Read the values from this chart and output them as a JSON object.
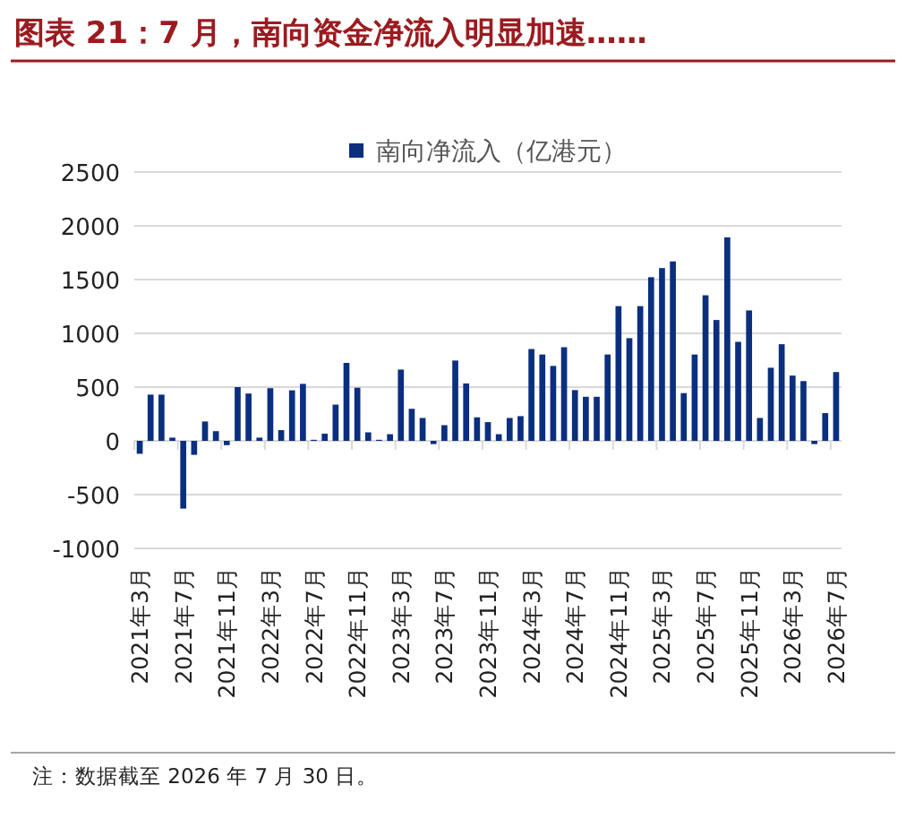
{
  "chart_data": {
    "type": "bar",
    "title": "图表 21：7 月，南向资金净流入明显加速……",
    "categories": [
      "2021年3月",
      null,
      null,
      null,
      "2021年7月",
      null,
      null,
      null,
      "2021年11月",
      null,
      null,
      null,
      "2022年3月",
      null,
      null,
      null,
      "2022年7月",
      null,
      null,
      null,
      "2022年11月",
      null,
      null,
      null,
      "2023年3月",
      null,
      null,
      null,
      "2023年7月",
      null,
      null,
      null,
      "2023年11月",
      null,
      null,
      null,
      "2024年3月",
      null,
      null,
      null,
      "2024年7月",
      null,
      null,
      null,
      "2024年11月",
      null,
      null,
      null,
      "2025年3月",
      null,
      null,
      null,
      "2025年7月",
      null,
      null,
      null,
      "2025年11月",
      null,
      null,
      null,
      "2026年3月",
      null,
      null,
      null,
      "2026年7月"
    ],
    "series": [
      {
        "name": "南向净流入（亿港元）",
        "color": "#0b2f7f",
        "values": [
          -120,
          430,
          430,
          30,
          -630,
          -130,
          180,
          90,
          -40,
          500,
          440,
          30,
          490,
          100,
          470,
          530,
          10,
          67,
          337,
          725,
          494,
          79,
          10,
          62,
          663,
          298,
          213,
          -30,
          146,
          747,
          534,
          219,
          174,
          62,
          213,
          230,
          854,
          803,
          697,
          871,
          472,
          410,
          410,
          803,
          1253,
          955,
          1253,
          1522,
          1607,
          1669,
          444,
          803,
          1354,
          1124,
          1893,
          921,
          1213,
          213,
          680,
          899,
          607,
          556,
          -30,
          258,
          640
        ]
      }
    ],
    "ylim": [
      -1000,
      2500
    ],
    "yticks": [
      -1000,
      -500,
      0,
      500,
      1000,
      1500,
      2000,
      2500
    ],
    "grid": "y",
    "legend": "top",
    "annotations": [
      "注：数据截至 2026 年 7 月 30 日。"
    ]
  }
}
